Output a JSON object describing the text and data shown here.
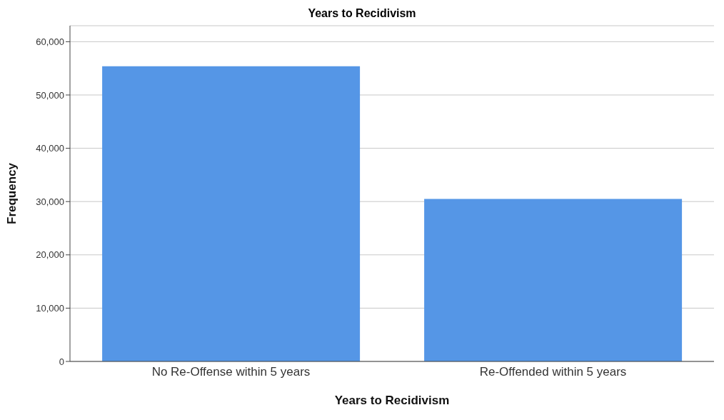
{
  "chart_data": {
    "type": "bar",
    "title": "Years to Recidivism",
    "xlabel": "Years to Recidivism",
    "ylabel": "Frequency",
    "categories": [
      "No Re-Offense within 5 years",
      "Re-Offended within 5 years"
    ],
    "values": [
      55400,
      30500
    ],
    "color": "#5596e6",
    "ylim": [
      0,
      63000
    ],
    "yticks": [
      {
        "value": 0,
        "label": "0"
      },
      {
        "value": 10000,
        "label": "10,000"
      },
      {
        "value": 20000,
        "label": "20,000"
      },
      {
        "value": 30000,
        "label": "30,000"
      },
      {
        "value": 40000,
        "label": "40,000"
      },
      {
        "value": 50000,
        "label": "50,000"
      },
      {
        "value": 60000,
        "label": "60,000"
      }
    ],
    "grid": "y"
  }
}
